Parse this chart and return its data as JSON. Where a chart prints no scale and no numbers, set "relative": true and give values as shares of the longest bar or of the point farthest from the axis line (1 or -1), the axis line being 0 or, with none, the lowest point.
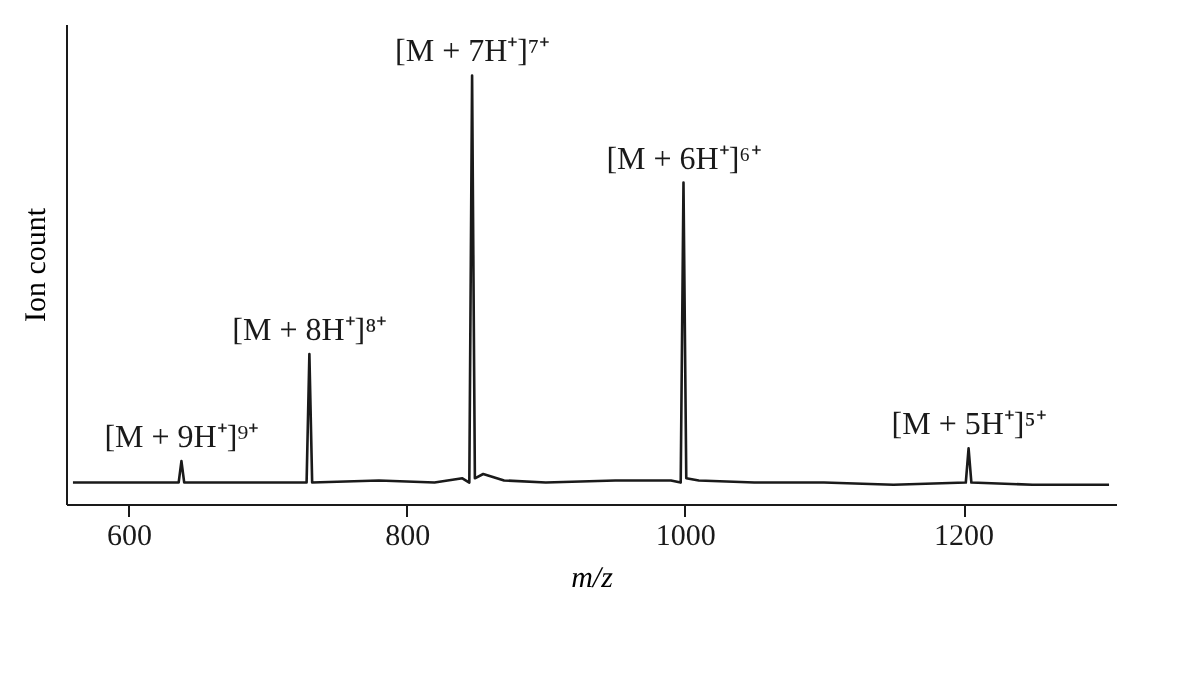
{
  "chart_data": {
    "type": "line",
    "relative": true,
    "xlabel": "m/z",
    "ylabel": "Ion count",
    "xlim": [
      555,
      1310
    ],
    "xticks": [
      600,
      800,
      1000,
      1200
    ],
    "tick_labels": "x",
    "grid": false,
    "marker": "none",
    "line_style": "solid",
    "series": [
      {
        "color": "#1a1a1a",
        "x": [
          560,
          600,
          636,
          638,
          640,
          680,
          728,
          730,
          732,
          780,
          820,
          840,
          845,
          847,
          849,
          855,
          870,
          900,
          950,
          990,
          997,
          999,
          1001,
          1010,
          1050,
          1100,
          1150,
          1202,
          1204,
          1206,
          1250,
          1305
        ],
        "values": [
          0.05,
          0.05,
          0.05,
          0.1,
          0.05,
          0.05,
          0.05,
          0.35,
          0.05,
          0.055,
          0.05,
          0.06,
          0.05,
          1.0,
          0.06,
          0.07,
          0.055,
          0.05,
          0.055,
          0.055,
          0.05,
          0.75,
          0.06,
          0.055,
          0.05,
          0.05,
          0.045,
          0.05,
          0.13,
          0.05,
          0.045,
          0.045
        ]
      }
    ],
    "annotations": [
      {
        "text": "[M + 9H⁺]⁹⁺",
        "x": 638,
        "y": 0.1
      },
      {
        "text": "[M + 8H⁺]⁸⁺",
        "x": 730,
        "y": 0.35
      },
      {
        "text": "[M + 7H⁺]⁷⁺",
        "x": 847,
        "y": 1.0
      },
      {
        "text": "[M + 6H⁺]⁶⁺",
        "x": 999,
        "y": 0.75
      },
      {
        "text": "[M + 5H⁺]⁵⁺",
        "x": 1204,
        "y": 0.13
      }
    ]
  }
}
